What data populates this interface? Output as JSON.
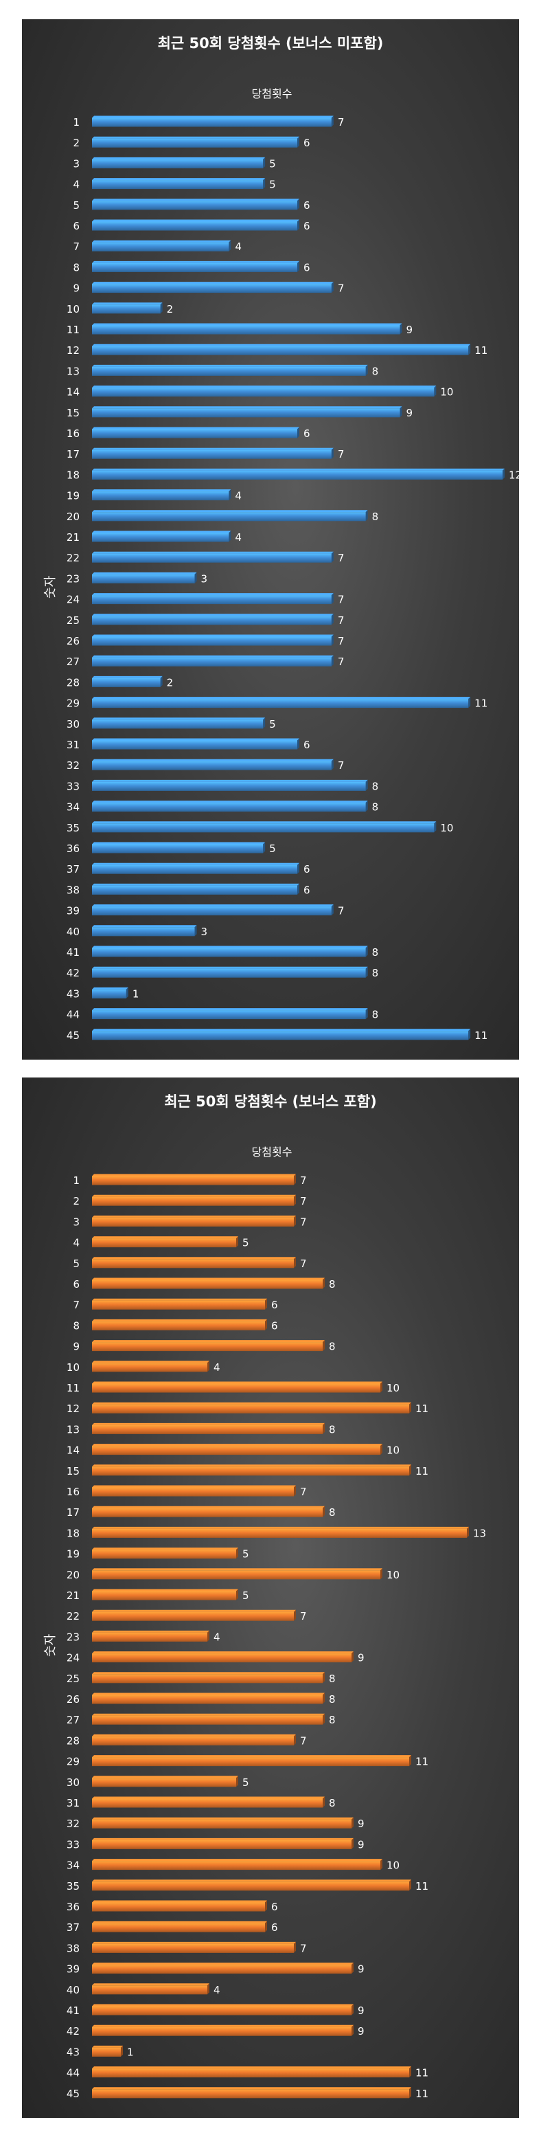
{
  "chart_data": [
    {
      "type": "bar",
      "orientation": "horizontal",
      "title": "최근 50회 당첨횟수 (보너스 미포함)",
      "ylabel": "숫자",
      "xlabel": "",
      "legend": "top",
      "grid": false,
      "color": "#3f8dd8",
      "categories": [
        "1",
        "2",
        "3",
        "4",
        "5",
        "6",
        "7",
        "8",
        "9",
        "10",
        "11",
        "12",
        "13",
        "14",
        "15",
        "16",
        "17",
        "18",
        "19",
        "20",
        "21",
        "22",
        "23",
        "24",
        "25",
        "26",
        "27",
        "28",
        "29",
        "30",
        "31",
        "32",
        "33",
        "34",
        "35",
        "36",
        "37",
        "38",
        "39",
        "40",
        "41",
        "42",
        "43",
        "44",
        "45"
      ],
      "series": [
        {
          "name": "당첨횟수",
          "values": [
            7,
            6,
            5,
            5,
            6,
            6,
            4,
            6,
            7,
            2,
            9,
            11,
            8,
            10,
            9,
            6,
            7,
            12,
            4,
            8,
            4,
            7,
            3,
            7,
            7,
            7,
            7,
            2,
            11,
            5,
            6,
            7,
            8,
            8,
            10,
            5,
            6,
            6,
            7,
            3,
            8,
            8,
            1,
            8,
            11
          ]
        }
      ],
      "xlim": [
        0,
        12
      ]
    },
    {
      "type": "bar",
      "orientation": "horizontal",
      "title": "최근 50회 당첨횟수 (보너스 포함)",
      "ylabel": "숫자",
      "xlabel": "",
      "legend": "top",
      "grid": false,
      "color": "#f07a2c",
      "categories": [
        "1",
        "2",
        "3",
        "4",
        "5",
        "6",
        "7",
        "8",
        "9",
        "10",
        "11",
        "12",
        "13",
        "14",
        "15",
        "16",
        "17",
        "18",
        "19",
        "20",
        "21",
        "22",
        "23",
        "24",
        "25",
        "26",
        "27",
        "28",
        "29",
        "30",
        "31",
        "32",
        "33",
        "34",
        "35",
        "36",
        "37",
        "38",
        "39",
        "40",
        "41",
        "42",
        "43",
        "44",
        "45"
      ],
      "series": [
        {
          "name": "당첨횟수",
          "values": [
            7,
            7,
            7,
            5,
            7,
            8,
            6,
            6,
            8,
            4,
            10,
            11,
            8,
            10,
            11,
            7,
            8,
            13,
            5,
            10,
            5,
            7,
            4,
            9,
            8,
            8,
            8,
            7,
            11,
            5,
            8,
            9,
            9,
            10,
            11,
            6,
            6,
            7,
            9,
            4,
            9,
            9,
            1,
            11,
            11
          ]
        }
      ],
      "xlim": [
        0,
        13
      ]
    }
  ]
}
